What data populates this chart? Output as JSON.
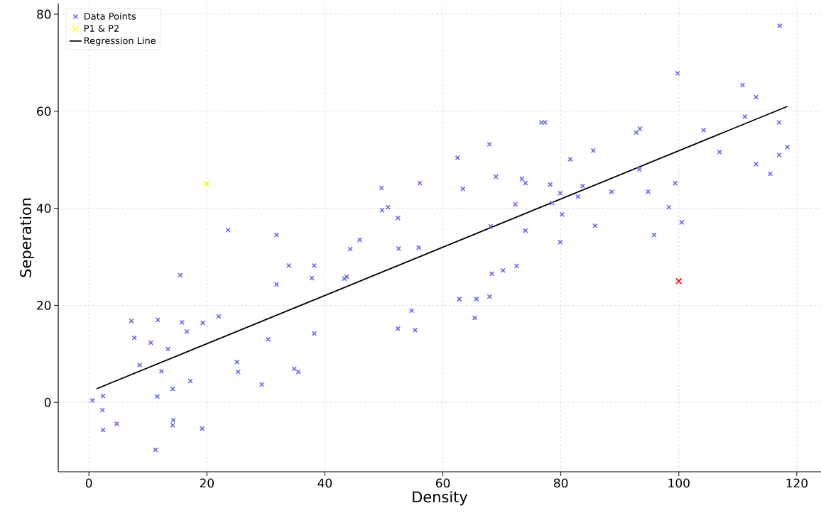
{
  "chart_data": {
    "type": "scatter",
    "xlabel": "Density",
    "ylabel": "Seperation",
    "xlim": [
      -5.2,
      124.1
    ],
    "ylim": [
      -14.3,
      82.2
    ],
    "xticks": [
      0,
      20,
      40,
      60,
      80,
      100,
      120
    ],
    "yticks": [
      0,
      20,
      40,
      60,
      80
    ],
    "grid": true,
    "legend": "top left",
    "marker": "cross",
    "series": [
      {
        "name": "Data Points",
        "color": "#6464ff",
        "x": [
          0.6,
          2.4,
          2.3,
          2.4,
          4.7,
          7.2,
          7.7,
          8.6,
          10.5,
          11.7,
          11.6,
          12.3,
          11.3,
          13.4,
          14.2,
          14.3,
          14.2,
          15.5,
          15.8,
          16.6,
          17.2,
          19.3,
          19.2,
          22.0,
          23.6,
          25.1,
          25.3,
          29.3,
          30.4,
          31.8,
          31.8,
          33.9,
          34.8,
          35.5,
          37.8,
          38.2,
          38.2,
          43.3,
          43.7,
          44.3,
          45.9,
          49.6,
          49.7,
          50.7,
          52.4,
          52.5,
          52.4,
          54.7,
          55.3,
          56.1,
          55.9,
          62.5,
          62.8,
          63.4,
          65.4,
          65.7,
          67.9,
          68.1,
          67.9,
          68.3,
          69.0,
          70.2,
          72.3,
          72.5,
          73.4,
          74.0,
          74.0,
          76.7,
          77.3,
          78.2,
          78.5,
          79.9,
          80.2,
          79.9,
          81.6,
          82.9,
          83.7,
          85.5,
          85.8,
          88.6,
          92.8,
          93.4,
          93.3,
          94.8,
          95.8,
          98.3,
          99.4,
          99.8,
          100.5,
          104.2,
          106.9,
          110.8,
          111.2,
          113.1,
          113.1,
          115.5,
          117.1,
          117.0,
          117.0,
          118.4
        ],
        "values": [
          0.4,
          1.3,
          -1.6,
          -5.7,
          -4.4,
          16.8,
          13.3,
          7.7,
          12.3,
          17.0,
          1.2,
          6.4,
          -9.8,
          11.0,
          2.8,
          -3.7,
          -4.7,
          26.2,
          16.5,
          14.6,
          4.4,
          16.4,
          -5.4,
          17.7,
          35.5,
          8.3,
          6.3,
          3.7,
          13.0,
          34.5,
          24.3,
          28.2,
          6.9,
          6.3,
          25.6,
          28.2,
          14.2,
          25.5,
          25.9,
          31.6,
          33.5,
          44.2,
          39.6,
          40.2,
          38.0,
          31.7,
          15.2,
          18.9,
          14.9,
          45.2,
          31.9,
          50.4,
          21.3,
          44.0,
          17.4,
          21.3,
          53.2,
          36.3,
          21.8,
          26.5,
          46.5,
          27.2,
          40.8,
          28.1,
          46.1,
          35.4,
          45.2,
          57.7,
          57.7,
          44.9,
          41.1,
          43.1,
          38.7,
          33.0,
          50.1,
          42.4,
          44.6,
          51.9,
          36.4,
          43.4,
          55.6,
          56.4,
          48.0,
          43.4,
          34.5,
          40.2,
          45.2,
          67.8,
          37.1,
          56.1,
          51.6,
          65.4,
          58.9,
          62.9,
          49.1,
          47.1,
          77.6,
          57.7,
          51.0,
          52.6
        ]
      },
      {
        "name": "P1 & P2",
        "color": "#ffff00",
        "x": [
          20
        ],
        "values": [
          45
        ]
      },
      {
        "color": "#ff0000",
        "x": [
          100
        ],
        "values": [
          25
        ]
      },
      {
        "name": "Regression Line",
        "type": "line",
        "marker": "none",
        "line_style": "solid",
        "color": "#000000",
        "x": [
          1.3,
          118.4
        ],
        "values": [
          2.8,
          61.0
        ]
      }
    ]
  }
}
